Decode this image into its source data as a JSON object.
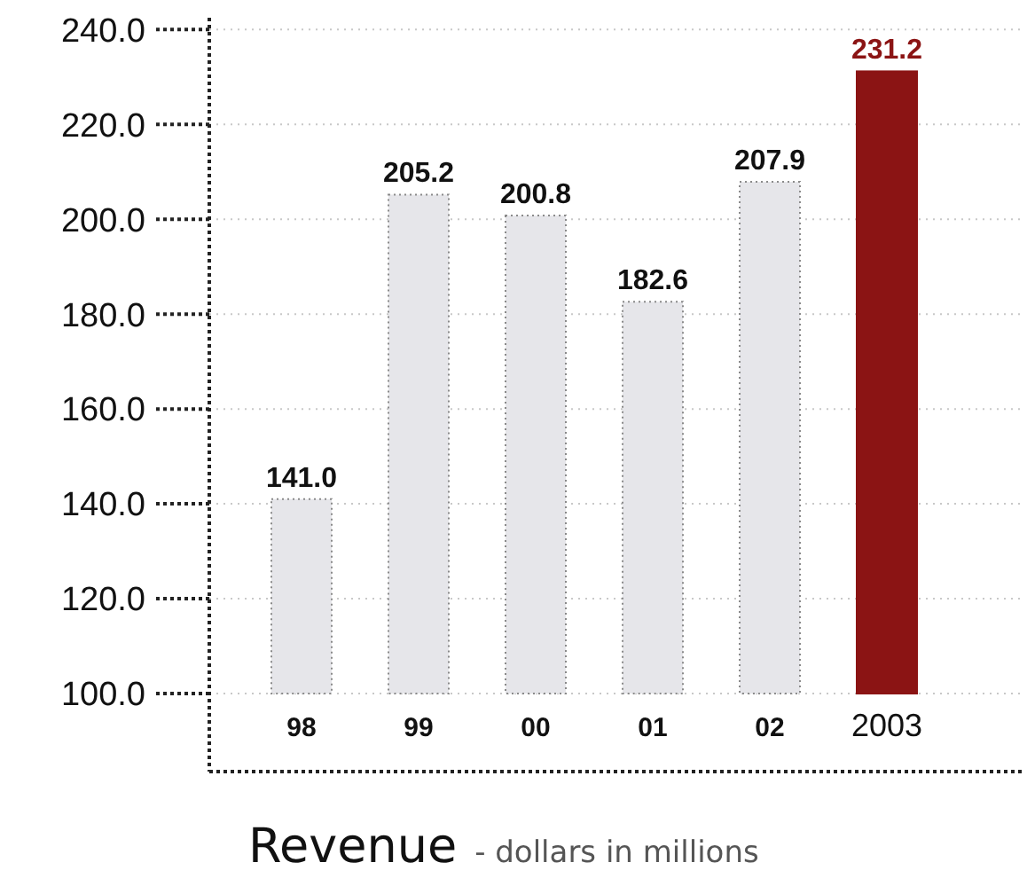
{
  "chart_data": {
    "type": "bar",
    "title": "Revenue",
    "subtitle": "- dollars in millions",
    "categories": [
      "98",
      "99",
      "00",
      "01",
      "02",
      "2003"
    ],
    "values": [
      141.0,
      205.2,
      200.8,
      182.6,
      207.9,
      231.2
    ],
    "colors": [
      "#e6e6ea",
      "#e6e6ea",
      "#e6e6ea",
      "#e6e6ea",
      "#e6e6ea",
      "#8b1414"
    ],
    "ylim": [
      100,
      242.5
    ],
    "yticks": [
      {
        "value": 100,
        "label": "100.0"
      },
      {
        "value": 120,
        "label": "120.0"
      },
      {
        "value": 140,
        "label": "140.0"
      },
      {
        "value": 160,
        "label": "160.0"
      },
      {
        "value": 180,
        "label": "180.0"
      },
      {
        "value": 200,
        "label": "200.0"
      },
      {
        "value": 220,
        "label": "220.0"
      },
      {
        "value": 240,
        "label": "240.0"
      }
    ],
    "value_labels": [
      "141.0",
      "205.2",
      "200.8",
      "182.6",
      "207.9",
      "231.2"
    ],
    "grid": "y"
  }
}
